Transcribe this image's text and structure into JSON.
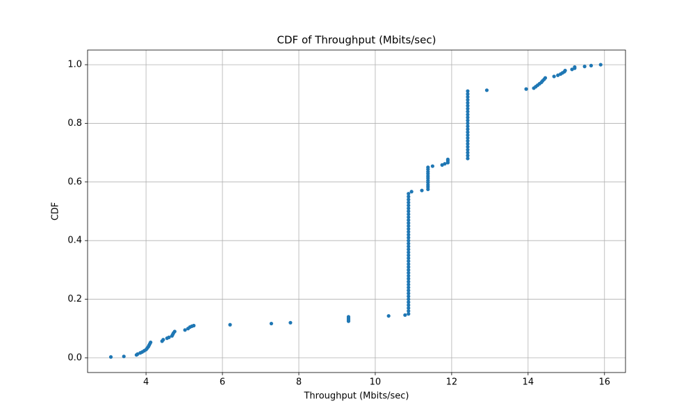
{
  "chart_data": {
    "type": "scatter",
    "title": "CDF of Throughput (Mbits/sec)",
    "x_label": "Throughput (Mbits/sec)",
    "y_label": "CDF",
    "color": "#1f77b4",
    "grid": true,
    "xlim": [
      2.47,
      16.55
    ],
    "ylim": [
      -0.05,
      1.05
    ],
    "xticks": [
      4,
      6,
      8,
      10,
      12,
      14,
      16
    ],
    "yticks": [
      {
        "value": 0,
        "label": "0.0"
      },
      0.2,
      0.4,
      0.6,
      0.8,
      {
        "value": 1,
        "label": "1.0"
      }
    ],
    "x": [
      3.08,
      3.42,
      3.75,
      3.78,
      3.85,
      3.9,
      3.95,
      4.0,
      4.03,
      4.06,
      4.08,
      4.1,
      4.12,
      4.42,
      4.45,
      4.55,
      4.6,
      4.68,
      4.7,
      4.72,
      4.75,
      5.02,
      5.1,
      5.15,
      5.2,
      5.25,
      6.2,
      7.28,
      7.78,
      9.3,
      9.3,
      9.3,
      9.3,
      10.35,
      10.78,
      10.87,
      10.87,
      10.87,
      10.87,
      10.87,
      10.87,
      10.87,
      10.87,
      10.87,
      10.87,
      10.87,
      10.87,
      10.87,
      10.87,
      10.87,
      10.87,
      10.87,
      10.87,
      10.87,
      10.87,
      10.87,
      10.87,
      10.87,
      10.87,
      10.87,
      10.87,
      10.87,
      10.87,
      10.87,
      10.87,
      10.87,
      10.87,
      10.87,
      10.87,
      10.87,
      10.87,
      10.87,
      10.87,
      10.87,
      10.87,
      10.87,
      10.87,
      10.95,
      11.22,
      11.38,
      11.38,
      11.38,
      11.38,
      11.38,
      11.38,
      11.38,
      11.38,
      11.38,
      11.38,
      11.38,
      11.5,
      11.75,
      11.82,
      11.9,
      11.9,
      11.9,
      12.42,
      12.42,
      12.42,
      12.42,
      12.42,
      12.42,
      12.42,
      12.42,
      12.42,
      12.42,
      12.42,
      12.42,
      12.42,
      12.42,
      12.42,
      12.42,
      12.42,
      12.42,
      12.42,
      12.42,
      12.42,
      12.42,
      12.42,
      12.42,
      12.92,
      13.95,
      14.15,
      14.2,
      14.25,
      14.3,
      14.35,
      14.38,
      14.42,
      14.45,
      14.68,
      14.78,
      14.85,
      14.9,
      14.95,
      14.97,
      15.15,
      15.22,
      15.22,
      15.48,
      15.65,
      15.9
    ],
    "values": [
      0.003,
      0.005,
      0.01,
      0.013,
      0.017,
      0.02,
      0.024,
      0.028,
      0.033,
      0.038,
      0.043,
      0.048,
      0.053,
      0.057,
      0.062,
      0.067,
      0.07,
      0.075,
      0.08,
      0.085,
      0.09,
      0.095,
      0.1,
      0.105,
      0.108,
      0.11,
      0.113,
      0.117,
      0.12,
      0.125,
      0.13,
      0.135,
      0.14,
      0.143,
      0.146,
      0.15,
      0.16,
      0.17,
      0.18,
      0.19,
      0.2,
      0.21,
      0.22,
      0.23,
      0.24,
      0.25,
      0.26,
      0.27,
      0.28,
      0.29,
      0.3,
      0.31,
      0.32,
      0.33,
      0.34,
      0.35,
      0.36,
      0.37,
      0.38,
      0.39,
      0.4,
      0.41,
      0.42,
      0.43,
      0.44,
      0.45,
      0.46,
      0.47,
      0.48,
      0.49,
      0.5,
      0.51,
      0.52,
      0.53,
      0.54,
      0.55,
      0.56,
      0.567,
      0.571,
      0.575,
      0.583,
      0.59,
      0.598,
      0.605,
      0.613,
      0.62,
      0.628,
      0.635,
      0.643,
      0.65,
      0.654,
      0.658,
      0.662,
      0.666,
      0.672,
      0.677,
      0.68,
      0.69,
      0.7,
      0.71,
      0.72,
      0.73,
      0.74,
      0.75,
      0.76,
      0.77,
      0.78,
      0.79,
      0.8,
      0.81,
      0.82,
      0.83,
      0.84,
      0.85,
      0.86,
      0.87,
      0.88,
      0.89,
      0.9,
      0.91,
      0.913,
      0.917,
      0.92,
      0.925,
      0.93,
      0.935,
      0.94,
      0.945,
      0.95,
      0.955,
      0.96,
      0.964,
      0.968,
      0.972,
      0.976,
      0.98,
      0.984,
      0.988,
      0.992,
      0.994,
      0.997,
      1.0
    ]
  }
}
